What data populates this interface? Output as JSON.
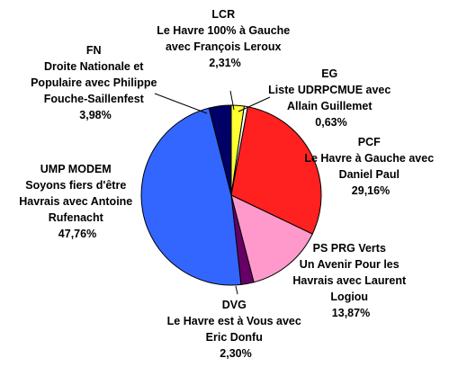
{
  "chart_data": {
    "type": "pie",
    "title": "",
    "start": "top",
    "direction": "clockwise",
    "slices": [
      {
        "name": "LCR",
        "line2": "Le Havre 100% à Gauche",
        "line3": "avec François Leroux",
        "line4": "",
        "label": "2,31%",
        "value": 2.31,
        "color": "#ffff33"
      },
      {
        "name": "EG",
        "line2": "Liste UDRPCMUE avec",
        "line3": "Allain Guillemet",
        "line4": "",
        "label": "0,63%",
        "value": 0.63,
        "color": "#ffffff"
      },
      {
        "name": "PCF",
        "line2": "Le Havre à Gauche avec",
        "line3": "Daniel Paul",
        "line4": "",
        "label": "29,16%",
        "value": 29.16,
        "color": "#ff2020"
      },
      {
        "name": "PS PRG Verts",
        "line2": "Un Avenir Pour les",
        "line3": "Havrais avec Laurent",
        "line4": "Logiou",
        "label": "13,87%",
        "value": 13.87,
        "color": "#ff99cc"
      },
      {
        "name": "DVG",
        "line2": "Le Havre est à Vous avec",
        "line3": "Eric Donfu",
        "line4": "",
        "label": "2,30%",
        "value": 2.3,
        "color": "#660066"
      },
      {
        "name": "UMP MODEM",
        "line2": "Soyons fiers d'être",
        "line3": "Havrais avec Antoine",
        "line4": "Rufenacht",
        "label": "47,76%",
        "value": 47.76,
        "color": "#3366ff"
      },
      {
        "name": "FN",
        "line2": "Droite Nationale et",
        "line3": "Populaire avec Philippe",
        "line4": "Fouche-Saillenfest",
        "label": "3,98%",
        "value": 3.98,
        "color": "#000066"
      }
    ]
  }
}
